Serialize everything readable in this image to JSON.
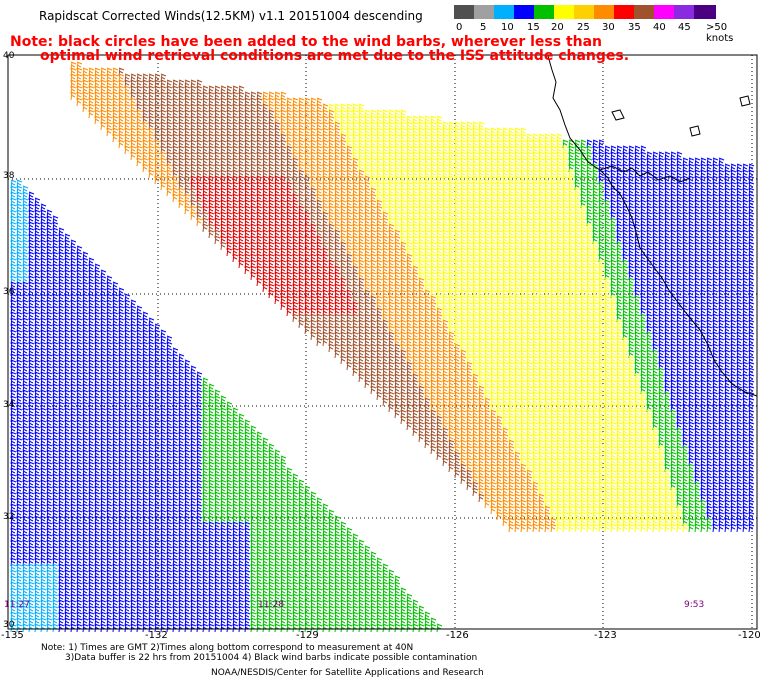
{
  "title": "Rapidscat Corrected Winds(12.5KM) v1.1 20151004 descending",
  "note": {
    "line1": "Note: black circles have been added to the wind barbs, wherever less than",
    "line2": "optimal wind retrieval conditions are met due to the ISS attitude changes."
  },
  "scale": {
    "colors": [
      "#505050",
      "#a0a0a0",
      "#00b0ff",
      "#0000ff",
      "#00c000",
      "#ffff00",
      "#ffd000",
      "#ff8c00",
      "#ff0000",
      "#a0522d",
      "#ff00ff",
      "#8a2be2",
      "#4b0082"
    ],
    "labels": [
      "0",
      "5",
      "10",
      "15",
      "20",
      "25",
      "30",
      "35",
      "40",
      "45",
      ">50 knots"
    ]
  },
  "axes": {
    "lat_labels": [
      "40",
      "38",
      "36",
      "34",
      "32",
      "30"
    ],
    "lon_labels": [
      "-135",
      "-132",
      "-129",
      "-126",
      "-123",
      "-120"
    ]
  },
  "times": [
    "11:27",
    "11:28",
    "9:53"
  ],
  "footnote": {
    "line1": "Note: 1) Times are GMT 2)Times along bottom correspond to measurement at 40N",
    "line2": "3)Data buffer is 22 hrs from 20151004 4) Black wind barbs indicate possible contamination"
  },
  "credit": "NOAA/NESDIS/Center for Satellite Applications and Research"
}
